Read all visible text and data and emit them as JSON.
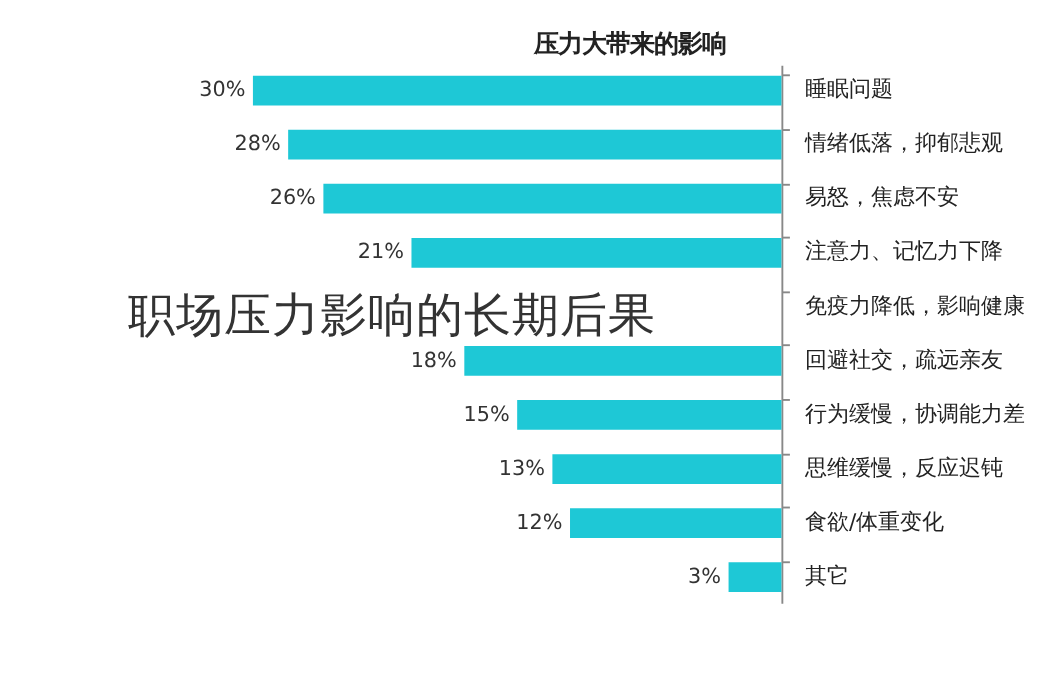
{
  "chart_data": {
    "type": "bar",
    "orientation": "horizontal",
    "title": "压力大带来的影响",
    "categories": [
      "睡眠问题",
      "情绪低落，抑郁悲观",
      "易怒，焦虑不安",
      "注意力、记忆力下降",
      "免疫力降低，影响健康",
      "回避社交，疏远亲友",
      "行为缓慢，协调能力差",
      "思维缓慢，反应迟钝",
      "食欲/体重变化",
      "其它"
    ],
    "values": [
      30,
      28,
      26,
      21,
      null,
      18,
      15,
      13,
      12,
      3
    ],
    "value_labels": [
      "30%",
      "28%",
      "26%",
      "21%",
      null,
      "18%",
      "15%",
      "13%",
      "12%",
      "3%"
    ],
    "color": "#1ec8d6",
    "annotations": [
      "职场压力影响的长期后果"
    ]
  }
}
